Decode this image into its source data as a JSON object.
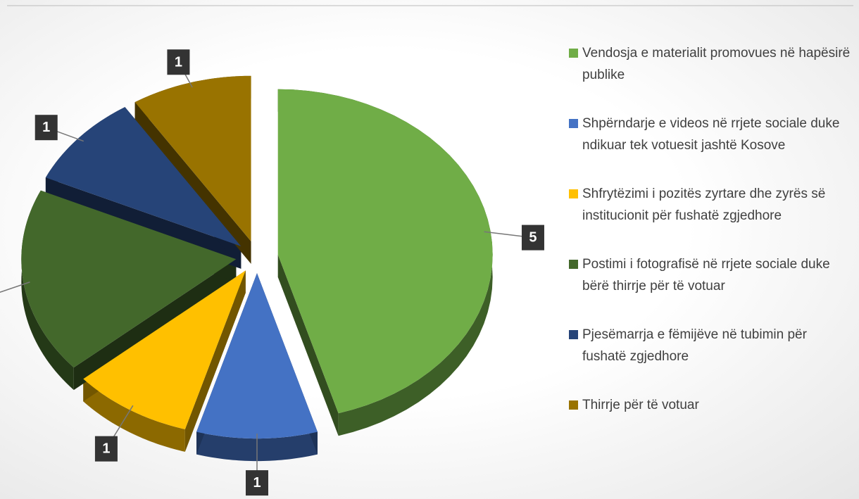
{
  "chart_data": {
    "type": "pie",
    "categories": [
      "Vendosja e materialit promovues në hapësirë publike",
      "Shpërndarje e videos në rrjete sociale duke ndikuar tek  votuesit jashtë Kosove",
      "Shfrytëzimi i pozitës zyrtare  dhe zyrës së institucionit për fushatë zgjedhore",
      "Postimi i fotografisë në rrjete sociale duke bërë thirrje për të votuar",
      "Pjesëmarrja  e fëmijëve në tubimin për fushatë zgjedhore",
      "Thirrje për të votuar"
    ],
    "values": [
      5,
      1,
      1,
      2,
      1,
      1
    ],
    "colors": [
      "#70ad47",
      "#4472c4",
      "#ffc000",
      "#43682b",
      "#264478",
      "#997300"
    ],
    "legend": "right"
  }
}
